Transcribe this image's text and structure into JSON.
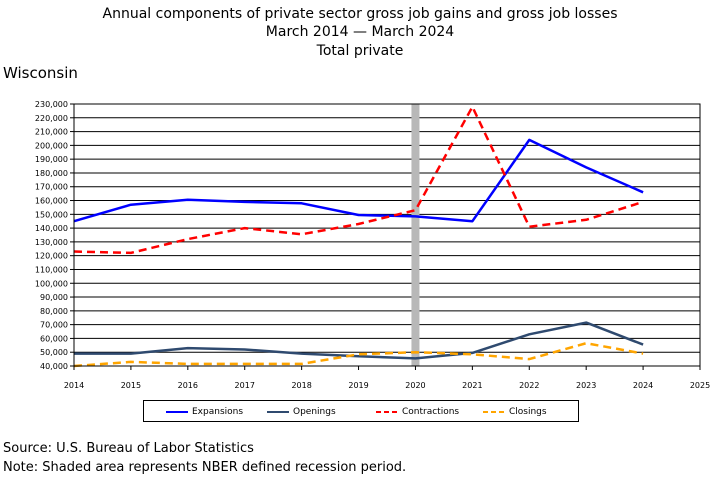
{
  "chart_data": {
    "type": "line",
    "title": "Annual components of private sector gross job gains and gross job losses",
    "subtitle": "March 2014 — March 2024",
    "subtitle2": "Total private",
    "region": "Wisconsin",
    "xlim": [
      2014,
      2025
    ],
    "ylim": [
      40000,
      230000
    ],
    "x": [
      2014,
      2015,
      2016,
      2017,
      2018,
      2019,
      2020,
      2021,
      2022,
      2023,
      2024
    ],
    "x_ticks": [
      "2014",
      "2015",
      "2016",
      "2017",
      "2018",
      "2019",
      "2020",
      "2021",
      "2022",
      "2023",
      "2024",
      "2025"
    ],
    "y_ticks": [
      "40,000",
      "50,000",
      "60,000",
      "70,000",
      "80,000",
      "90,000",
      "100,000",
      "110,000",
      "120,000",
      "130,000",
      "140,000",
      "150,000",
      "160,000",
      "170,000",
      "180,000",
      "190,000",
      "200,000",
      "210,000",
      "220,000",
      "230,000"
    ],
    "grid": true,
    "recession_shading": {
      "x": 2020
    },
    "series": [
      {
        "name": "Expansions",
        "color": "#0000ff",
        "style": "solid",
        "values": [
          145000,
          157000,
          160500,
          159000,
          158000,
          149500,
          148500,
          145000,
          204000,
          184000,
          166000
        ]
      },
      {
        "name": "Openings",
        "color": "#2f4a6f",
        "style": "solid",
        "values": [
          49000,
          49000,
          53000,
          52000,
          49000,
          47000,
          45500,
          49500,
          63000,
          71500,
          55500
        ]
      },
      {
        "name": "Contractions",
        "color": "#ff0000",
        "style": "dashed",
        "values": [
          123000,
          122000,
          132000,
          140000,
          135500,
          143000,
          153000,
          228000,
          141000,
          146000,
          159000
        ]
      },
      {
        "name": "Closings",
        "color": "#ffa500",
        "style": "dashed",
        "values": [
          40000,
          43000,
          41500,
          41500,
          41500,
          48500,
          50000,
          48500,
          45000,
          56500,
          49000
        ]
      }
    ],
    "legend_position": "bottom"
  },
  "source": "Source: U.S. Bureau of Labor Statistics",
  "note": "Note: Shaded area represents NBER defined recession period."
}
